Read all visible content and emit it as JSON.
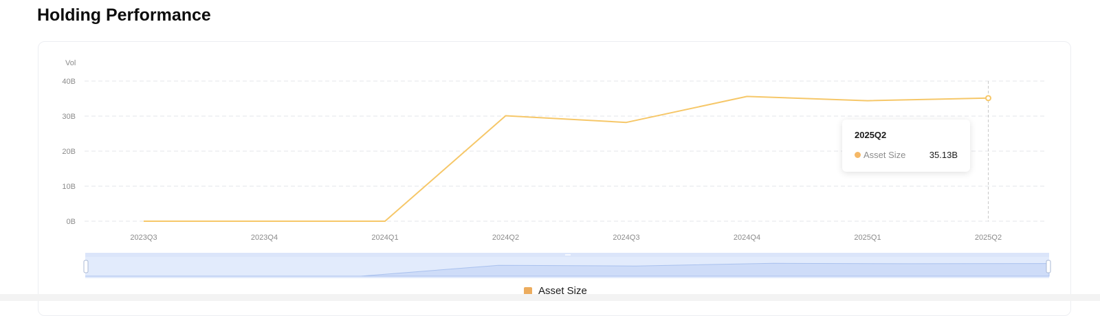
{
  "page": {
    "title": "Holding Performance"
  },
  "chart_data": {
    "type": "line",
    "title": "",
    "ylabel": "Vol",
    "xlabel": "",
    "categories": [
      "2023Q3",
      "2023Q4",
      "2024Q1",
      "2024Q2",
      "2024Q3",
      "2024Q4",
      "2025Q1",
      "2025Q2"
    ],
    "y_ticks": [
      "0B",
      "10B",
      "20B",
      "30B",
      "40B"
    ],
    "ylim": [
      0,
      40
    ],
    "y_unit": "B",
    "grid": true,
    "grid_style": "dashed",
    "legend_position": "bottom-center",
    "series": [
      {
        "name": "Asset Size",
        "color": "#f6c768",
        "values": [
          0,
          0,
          0,
          30.1,
          28.2,
          35.6,
          34.4,
          35.13
        ]
      }
    ],
    "highlighted_index": 7,
    "tooltip": {
      "title": "2025Q2",
      "label": "Asset Size",
      "value": "35.13B",
      "dot_color": "#f5b866"
    },
    "data_zoom": {
      "start_percent": 0,
      "end_percent": 100
    }
  },
  "legend": {
    "label": "Asset Size",
    "color": "#ecac5e"
  },
  "colors": {
    "line": "#f6c768",
    "grid": "#e3e5ea",
    "axis_text": "#8a8a8a",
    "zoom_bg": "#e2ebfc",
    "zoom_fill": "#cedcf8",
    "zoom_line": "#a9c1ee"
  }
}
